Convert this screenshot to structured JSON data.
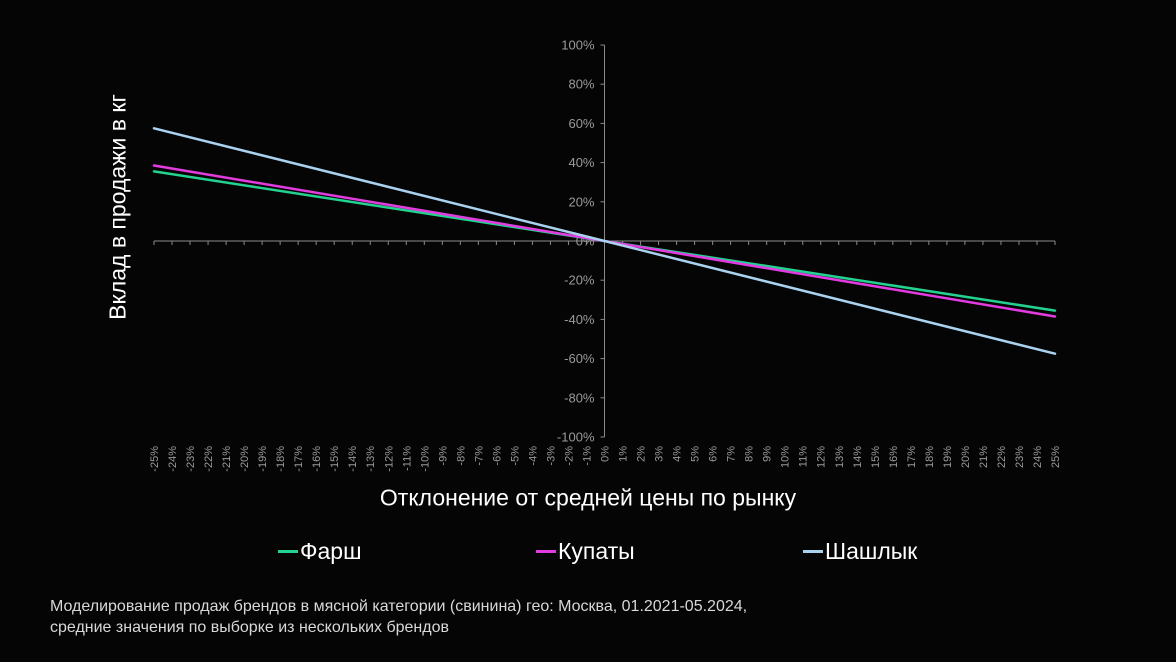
{
  "chart_data": {
    "type": "line",
    "xlabel": "Отклонение от средней цены по рынку",
    "ylabel": "Вклад в продажи в кг",
    "xlim": [
      -25,
      25
    ],
    "ylim": [
      -100,
      100
    ],
    "x_ticks": [
      "-25%",
      "-24%",
      "-23%",
      "-22%",
      "-21%",
      "-20%",
      "-19%",
      "-18%",
      "-17%",
      "-16%",
      "-15%",
      "-14%",
      "-13%",
      "-12%",
      "-11%",
      "-10%",
      "-9%",
      "-8%",
      "-7%",
      "-6%",
      "-5%",
      "-4%",
      "-3%",
      "-2%",
      "-1%",
      "0%",
      "1%",
      "2%",
      "3%",
      "4%",
      "5%",
      "6%",
      "7%",
      "8%",
      "9%",
      "10%",
      "11%",
      "12%",
      "13%",
      "14%",
      "15%",
      "16%",
      "17%",
      "18%",
      "19%",
      "20%",
      "21%",
      "22%",
      "23%",
      "24%",
      "25%"
    ],
    "y_ticks": [
      "100%",
      "80%",
      "60%",
      "40%",
      "20%",
      "0%",
      "-20%",
      "-40%",
      "-60%",
      "-80%",
      "-100%"
    ],
    "x_tick_values": [
      -25,
      -24,
      -23,
      -22,
      -21,
      -20,
      -19,
      -18,
      -17,
      -16,
      -15,
      -14,
      -13,
      -12,
      -11,
      -10,
      -9,
      -8,
      -7,
      -6,
      -5,
      -4,
      -3,
      -2,
      -1,
      0,
      1,
      2,
      3,
      4,
      5,
      6,
      7,
      8,
      9,
      10,
      11,
      12,
      13,
      14,
      15,
      16,
      17,
      18,
      19,
      20,
      21,
      22,
      23,
      24,
      25
    ],
    "y_tick_values": [
      100,
      80,
      60,
      40,
      20,
      0,
      -20,
      -40,
      -60,
      -80,
      -100
    ],
    "grid": false,
    "legend_position": "bottom",
    "series": [
      {
        "name": "Фарш",
        "color": "#23d28f",
        "x": [
          -25,
          0,
          25
        ],
        "y": [
          35.5,
          0,
          -35.5
        ]
      },
      {
        "name": "Купаты",
        "color": "#e23ce0",
        "x": [
          -25,
          0,
          25
        ],
        "y": [
          38.5,
          0,
          -38.5
        ]
      },
      {
        "name": "Шашлык",
        "color": "#a9d2f0",
        "x": [
          -25,
          0,
          25
        ],
        "y": [
          57.5,
          0,
          -57.5
        ]
      }
    ]
  },
  "legend": {
    "item1": "Фарш",
    "item2": "Купаты",
    "item3": "Шашлык"
  },
  "footnote": {
    "line1": "Моделирование продаж брендов в мясной категории (свинина) гео: Москва, 01.2021-05.2024,",
    "line2": "средние значения по выборке из нескольких брендов"
  }
}
